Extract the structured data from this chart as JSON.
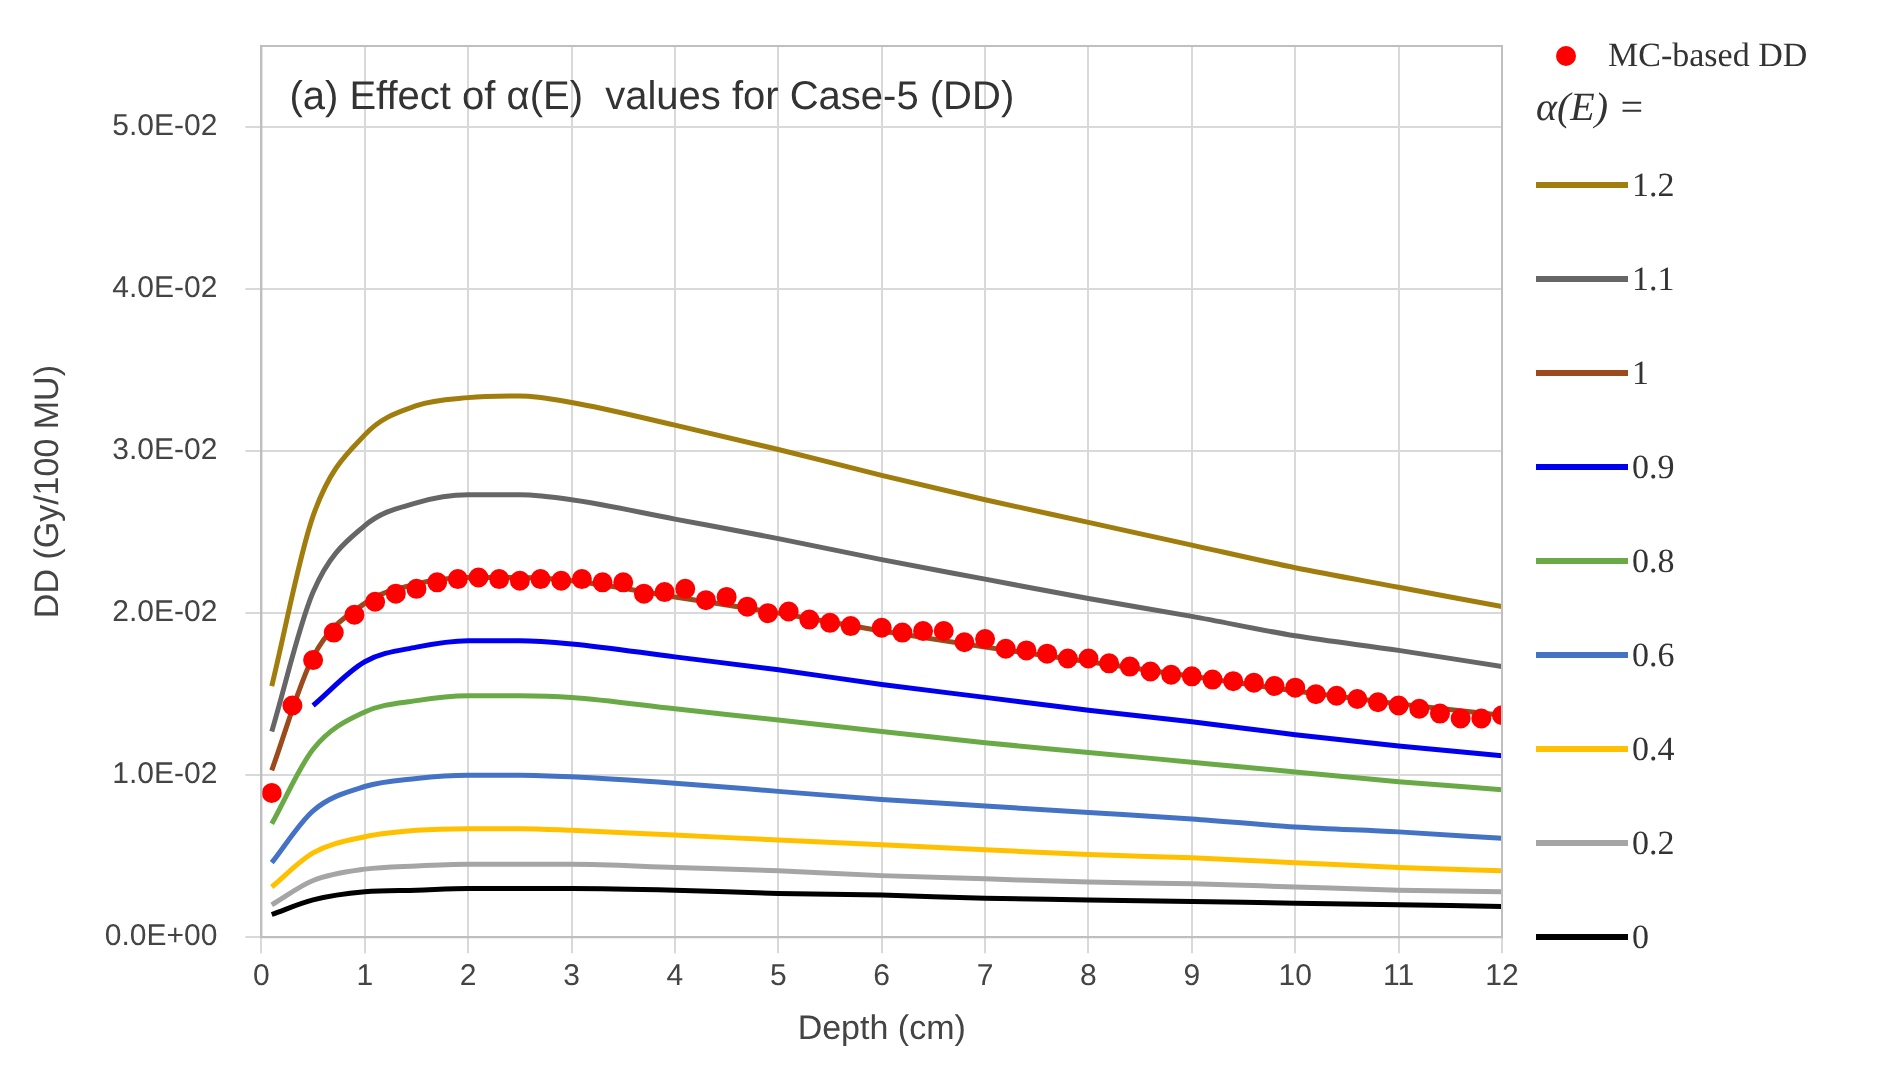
{
  "chart_data": {
    "type": "line",
    "title": "(a) Effect of α(E)  values for Case-5 (DD)",
    "xlabel": "Depth (cm)",
    "ylabel": "DD (Gy/100 MU)",
    "legend_title": "α(E) =",
    "legend": "right",
    "grid": true,
    "x": [
      0.1,
      0.5,
      1,
      1.5,
      2,
      2.5,
      3,
      4,
      5,
      6,
      7,
      8,
      9,
      10,
      11,
      12
    ],
    "xlim": [
      0,
      12
    ],
    "xticks": [
      0,
      1,
      2,
      3,
      4,
      5,
      6,
      7,
      8,
      9,
      10,
      11,
      12
    ],
    "ylim": [
      0,
      0.055
    ],
    "yticks": [
      {
        "value": 0,
        "label": "0.0E+00"
      },
      {
        "value": 0.01,
        "label": "1.0E-02"
      },
      {
        "value": 0.02,
        "label": "2.0E-02"
      },
      {
        "value": 0.03,
        "label": "3.0E-02"
      },
      {
        "value": 0.04,
        "label": "4.0E-02"
      },
      {
        "value": 0.05,
        "label": "5.0E-02"
      }
    ],
    "series": [
      {
        "name": "MC-based DD",
        "type": "scatter",
        "marker": "circle",
        "color": "#ff0000",
        "x": [
          0.1,
          0.3,
          0.5,
          0.7,
          0.9,
          1.1,
          1.3,
          1.5,
          1.7,
          1.9,
          2.1,
          2.3,
          2.5,
          2.7,
          2.9,
          3.1,
          3.3,
          3.5,
          3.7,
          3.9,
          4.1,
          4.3,
          4.5,
          4.7,
          4.9,
          5.1,
          5.3,
          5.5,
          5.7,
          6.0,
          6.2,
          6.4,
          6.6,
          6.8,
          7.0,
          7.2,
          7.4,
          7.6,
          7.8,
          8.0,
          8.2,
          8.4,
          8.6,
          8.8,
          9.0,
          9.2,
          9.4,
          9.6,
          9.8,
          10.0,
          10.2,
          10.4,
          10.6,
          10.8,
          11.0,
          11.2,
          11.4,
          11.6,
          11.8,
          12.0
        ],
        "values": [
          0.0089,
          0.0143,
          0.0171,
          0.0188,
          0.0199,
          0.0207,
          0.0212,
          0.0215,
          0.0219,
          0.0221,
          0.0222,
          0.0221,
          0.022,
          0.0221,
          0.022,
          0.0221,
          0.0219,
          0.0219,
          0.0212,
          0.0213,
          0.0215,
          0.0208,
          0.021,
          0.0204,
          0.02,
          0.0201,
          0.0196,
          0.0194,
          0.0192,
          0.0191,
          0.0188,
          0.0189,
          0.0189,
          0.0182,
          0.0184,
          0.0178,
          0.0177,
          0.0175,
          0.0172,
          0.0172,
          0.0169,
          0.0167,
          0.0164,
          0.0162,
          0.0161,
          0.0159,
          0.0158,
          0.0157,
          0.0155,
          0.0154,
          0.015,
          0.0149,
          0.0147,
          0.0145,
          0.0143,
          0.0141,
          0.0138,
          0.0135,
          0.0135,
          0.0137
        ]
      },
      {
        "name": "1.2",
        "color": "#a07d0c",
        "values": [
          0.0155,
          0.026,
          0.031,
          0.0328,
          0.0333,
          0.0334,
          0.033,
          0.0316,
          0.0301,
          0.0285,
          0.027,
          0.0256,
          0.0242,
          0.0228,
          0.0216,
          0.0204
        ]
      },
      {
        "name": "1.1",
        "color": "#666666",
        "values": [
          0.0127,
          0.0213,
          0.0254,
          0.0268,
          0.0273,
          0.0273,
          0.027,
          0.0258,
          0.0246,
          0.0233,
          0.0221,
          0.0209,
          0.0198,
          0.0186,
          0.0177,
          0.0167
        ]
      },
      {
        "name": "1",
        "color": "#9c4a1c",
        "values": [
          0.0103,
          0.0173,
          0.0206,
          0.0218,
          0.0222,
          0.0222,
          0.022,
          0.021,
          0.02,
          0.0189,
          0.0179,
          0.017,
          0.0161,
          0.0152,
          0.0144,
          0.0137
        ]
      },
      {
        "name": "0.9",
        "color": "#0000ee",
        "values": [
          null,
          0.0143,
          0.017,
          0.0179,
          0.0183,
          0.0183,
          0.0181,
          0.0173,
          0.0165,
          0.0156,
          0.0148,
          0.014,
          0.0133,
          0.0125,
          0.0118,
          0.0112
        ]
      },
      {
        "name": "0.8",
        "color": "#6aaa46",
        "values": [
          0.007,
          0.0116,
          0.0139,
          0.0146,
          0.0149,
          0.0149,
          0.0148,
          0.0141,
          0.0134,
          0.0127,
          0.012,
          0.0114,
          0.0108,
          0.0102,
          0.0096,
          0.0091
        ]
      },
      {
        "name": "0.6",
        "color": "#4472c4",
        "values": [
          0.0046,
          0.0078,
          0.0093,
          0.0098,
          0.01,
          0.01,
          0.0099,
          0.0095,
          0.009,
          0.0085,
          0.0081,
          0.0077,
          0.0073,
          0.0068,
          0.0065,
          0.0061
        ]
      },
      {
        "name": "0.4",
        "color": "#ffc000",
        "values": [
          0.0031,
          0.0052,
          0.0062,
          0.0066,
          0.0067,
          0.0067,
          0.0066,
          0.0063,
          0.006,
          0.0057,
          0.0054,
          0.0051,
          0.0049,
          0.0046,
          0.0043,
          0.0041
        ]
      },
      {
        "name": "0.2",
        "color": "#a5a5a5",
        "values": [
          0.002,
          0.0035,
          0.0042,
          0.0044,
          0.0045,
          0.0045,
          0.0045,
          0.0043,
          0.0041,
          0.0038,
          0.0036,
          0.0034,
          0.0033,
          0.0031,
          0.0029,
          0.0028
        ]
      },
      {
        "name": "0",
        "color": "#000000",
        "values": [
          0.0014,
          0.0023,
          0.0028,
          0.0029,
          0.003,
          0.003,
          0.003,
          0.0029,
          0.0027,
          0.0026,
          0.0024,
          0.0023,
          0.0022,
          0.0021,
          0.002,
          0.0019
        ]
      }
    ]
  }
}
